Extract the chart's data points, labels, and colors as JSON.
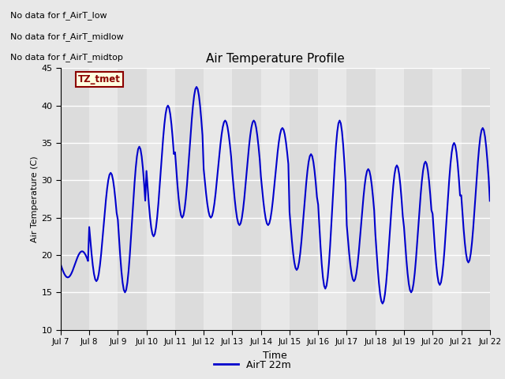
{
  "title": "Air Temperature Profile",
  "xlabel": "Time",
  "ylabel": "Air Temperature (C)",
  "legend_label": "AirT 22m",
  "ylim": [
    10,
    45
  ],
  "line_color": "#0000CC",
  "line_width": 1.5,
  "annotations": [
    "No data for f_AirT_low",
    "No data for f_AirT_midlow",
    "No data for f_AirT_midtop"
  ],
  "tz_label": "TZ_tmet",
  "yticks": [
    10,
    15,
    20,
    25,
    30,
    35,
    40,
    45
  ],
  "band_colors": [
    "#E8E8E8",
    "#D8D8D8"
  ],
  "data_hours": [
    0,
    1,
    2,
    3,
    4,
    5,
    6,
    7,
    8,
    9,
    10,
    11,
    12,
    13,
    14,
    15,
    16,
    17,
    18,
    19,
    20,
    21,
    22,
    23,
    24,
    25,
    26,
    27,
    28,
    29,
    30,
    31,
    32,
    33,
    34,
    35,
    36,
    37,
    38,
    39,
    40,
    41,
    42,
    43,
    44,
    45,
    46,
    47,
    48,
    49,
    50,
    51,
    52,
    53,
    54,
    55,
    56,
    57,
    58,
    59,
    60,
    61,
    62,
    63,
    64,
    65,
    66,
    67,
    68,
    69,
    70,
    71,
    72,
    73,
    74,
    75,
    76,
    77,
    78,
    79,
    80,
    81,
    82,
    83,
    84,
    85,
    86,
    87,
    88,
    89,
    90,
    91,
    92,
    93,
    94,
    95,
    96,
    97,
    98,
    99,
    100,
    101,
    102,
    103,
    104,
    105,
    106,
    107,
    108,
    109,
    110,
    111,
    112,
    113,
    114,
    115,
    116,
    117,
    118,
    119,
    120,
    121,
    122,
    123,
    124,
    125,
    126,
    127,
    128,
    129,
    130,
    131,
    132,
    133,
    134,
    135,
    136,
    137,
    138,
    139,
    140,
    141,
    142,
    143,
    144,
    145,
    146,
    147,
    148,
    149,
    150,
    151,
    152,
    153,
    154,
    155,
    156,
    157,
    158,
    159,
    160,
    161,
    162,
    163,
    164,
    165,
    166,
    167,
    168,
    169,
    170,
    171,
    172,
    173,
    174,
    175,
    176,
    177,
    178,
    179,
    180,
    181,
    182,
    183,
    184,
    185,
    186,
    187,
    188,
    189,
    190,
    191,
    192,
    193,
    194,
    195,
    196,
    197,
    198,
    199,
    200,
    201,
    202,
    203,
    204,
    205,
    206,
    207,
    208,
    209,
    210,
    211,
    212,
    213,
    214,
    215,
    216,
    217,
    218,
    219,
    220,
    221,
    222,
    223,
    224,
    225,
    226,
    227,
    228,
    229,
    230,
    231,
    232,
    233,
    234,
    235,
    236,
    237,
    238,
    239,
    240,
    241,
    242,
    243,
    244,
    245,
    246,
    247,
    248,
    249,
    250,
    251,
    252,
    253,
    254,
    255,
    256,
    257,
    258,
    259,
    260,
    261,
    262,
    263,
    264,
    265,
    266,
    267,
    268,
    269,
    270,
    271,
    272,
    273,
    274,
    275,
    276,
    277,
    278,
    279,
    280,
    281,
    282,
    283,
    284,
    285,
    286,
    287,
    288,
    289,
    290,
    291,
    292,
    293,
    294,
    295,
    296,
    297,
    298,
    299,
    300,
    301,
    302,
    303,
    304,
    305,
    306,
    307,
    308,
    309,
    310,
    311,
    312,
    313,
    314,
    315,
    316,
    317,
    318,
    319,
    320,
    321,
    322,
    323,
    324,
    325,
    326,
    327,
    328,
    329,
    330,
    331,
    332,
    333,
    334,
    335,
    336,
    337,
    338,
    339,
    340,
    341,
    342,
    343,
    344,
    345,
    346,
    347,
    348,
    349,
    350,
    351,
    352,
    353,
    354,
    355,
    356,
    357,
    358,
    359,
    360
  ]
}
